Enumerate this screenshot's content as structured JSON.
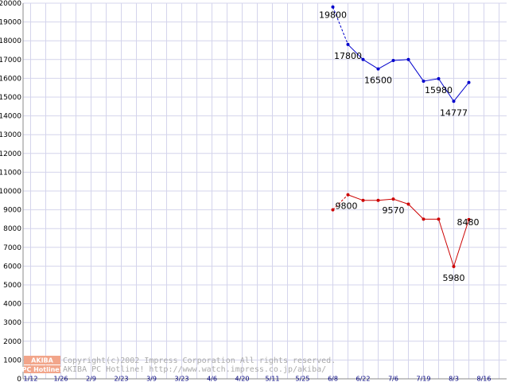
{
  "chart_data": {
    "type": "line",
    "title": "",
    "xlabel": "",
    "ylabel": "",
    "ylim": [
      0,
      20000
    ],
    "y_ticks": [
      0,
      1000,
      2000,
      3000,
      4000,
      5000,
      6000,
      7000,
      8000,
      9000,
      10000,
      11000,
      12000,
      13000,
      14000,
      15000,
      16000,
      17000,
      18000,
      19000,
      20000
    ],
    "x_tick_labels": [
      "1/12",
      "1/26",
      "2/9",
      "2/23",
      "3/9",
      "3/23",
      "4/6",
      "4/20",
      "5/11",
      "5/25",
      "6/8",
      "6/22",
      "7/6",
      "7/19",
      "8/3",
      "8/16"
    ],
    "x_slots": 32,
    "grid": true,
    "series": [
      {
        "color": "#0000cc",
        "points": [
          {
            "i": 20,
            "y": 19800,
            "label": "19800"
          },
          {
            "i": 21,
            "y": 17800,
            "label": "17800"
          },
          {
            "i": 22,
            "y": 17000
          },
          {
            "i": 23,
            "y": 16500,
            "label": "16500"
          },
          {
            "i": 24,
            "y": 16950
          },
          {
            "i": 25,
            "y": 17000
          },
          {
            "i": 26,
            "y": 15850
          },
          {
            "i": 27,
            "y": 15980,
            "label": "15980"
          },
          {
            "i": 28,
            "y": 14777,
            "label": "14777"
          },
          {
            "i": 29,
            "y": 15780
          }
        ],
        "dashed_until": 1
      },
      {
        "color": "#cc0000",
        "points": [
          {
            "i": 20,
            "y": 9000
          },
          {
            "i": 21,
            "y": 9800,
            "label": "9800"
          },
          {
            "i": 22,
            "y": 9500
          },
          {
            "i": 23,
            "y": 9500
          },
          {
            "i": 24,
            "y": 9570,
            "label": "9570"
          },
          {
            "i": 25,
            "y": 9300
          },
          {
            "i": 26,
            "y": 8500
          },
          {
            "i": 27,
            "y": 8500
          },
          {
            "i": 28,
            "y": 5980,
            "label": "5980"
          },
          {
            "i": 29,
            "y": 8480,
            "label": "8480"
          }
        ],
        "dashed_until": 1
      }
    ]
  },
  "watermark": {
    "logo_top": "AKIBA",
    "logo_bottom": "PC Hotline!",
    "line1": "Copyright(c)2002 Impress Corporation All rights reserved.",
    "line2": "AKIBA PC Hotline!  http://www.watch.impress.co.jp/akiba/"
  }
}
